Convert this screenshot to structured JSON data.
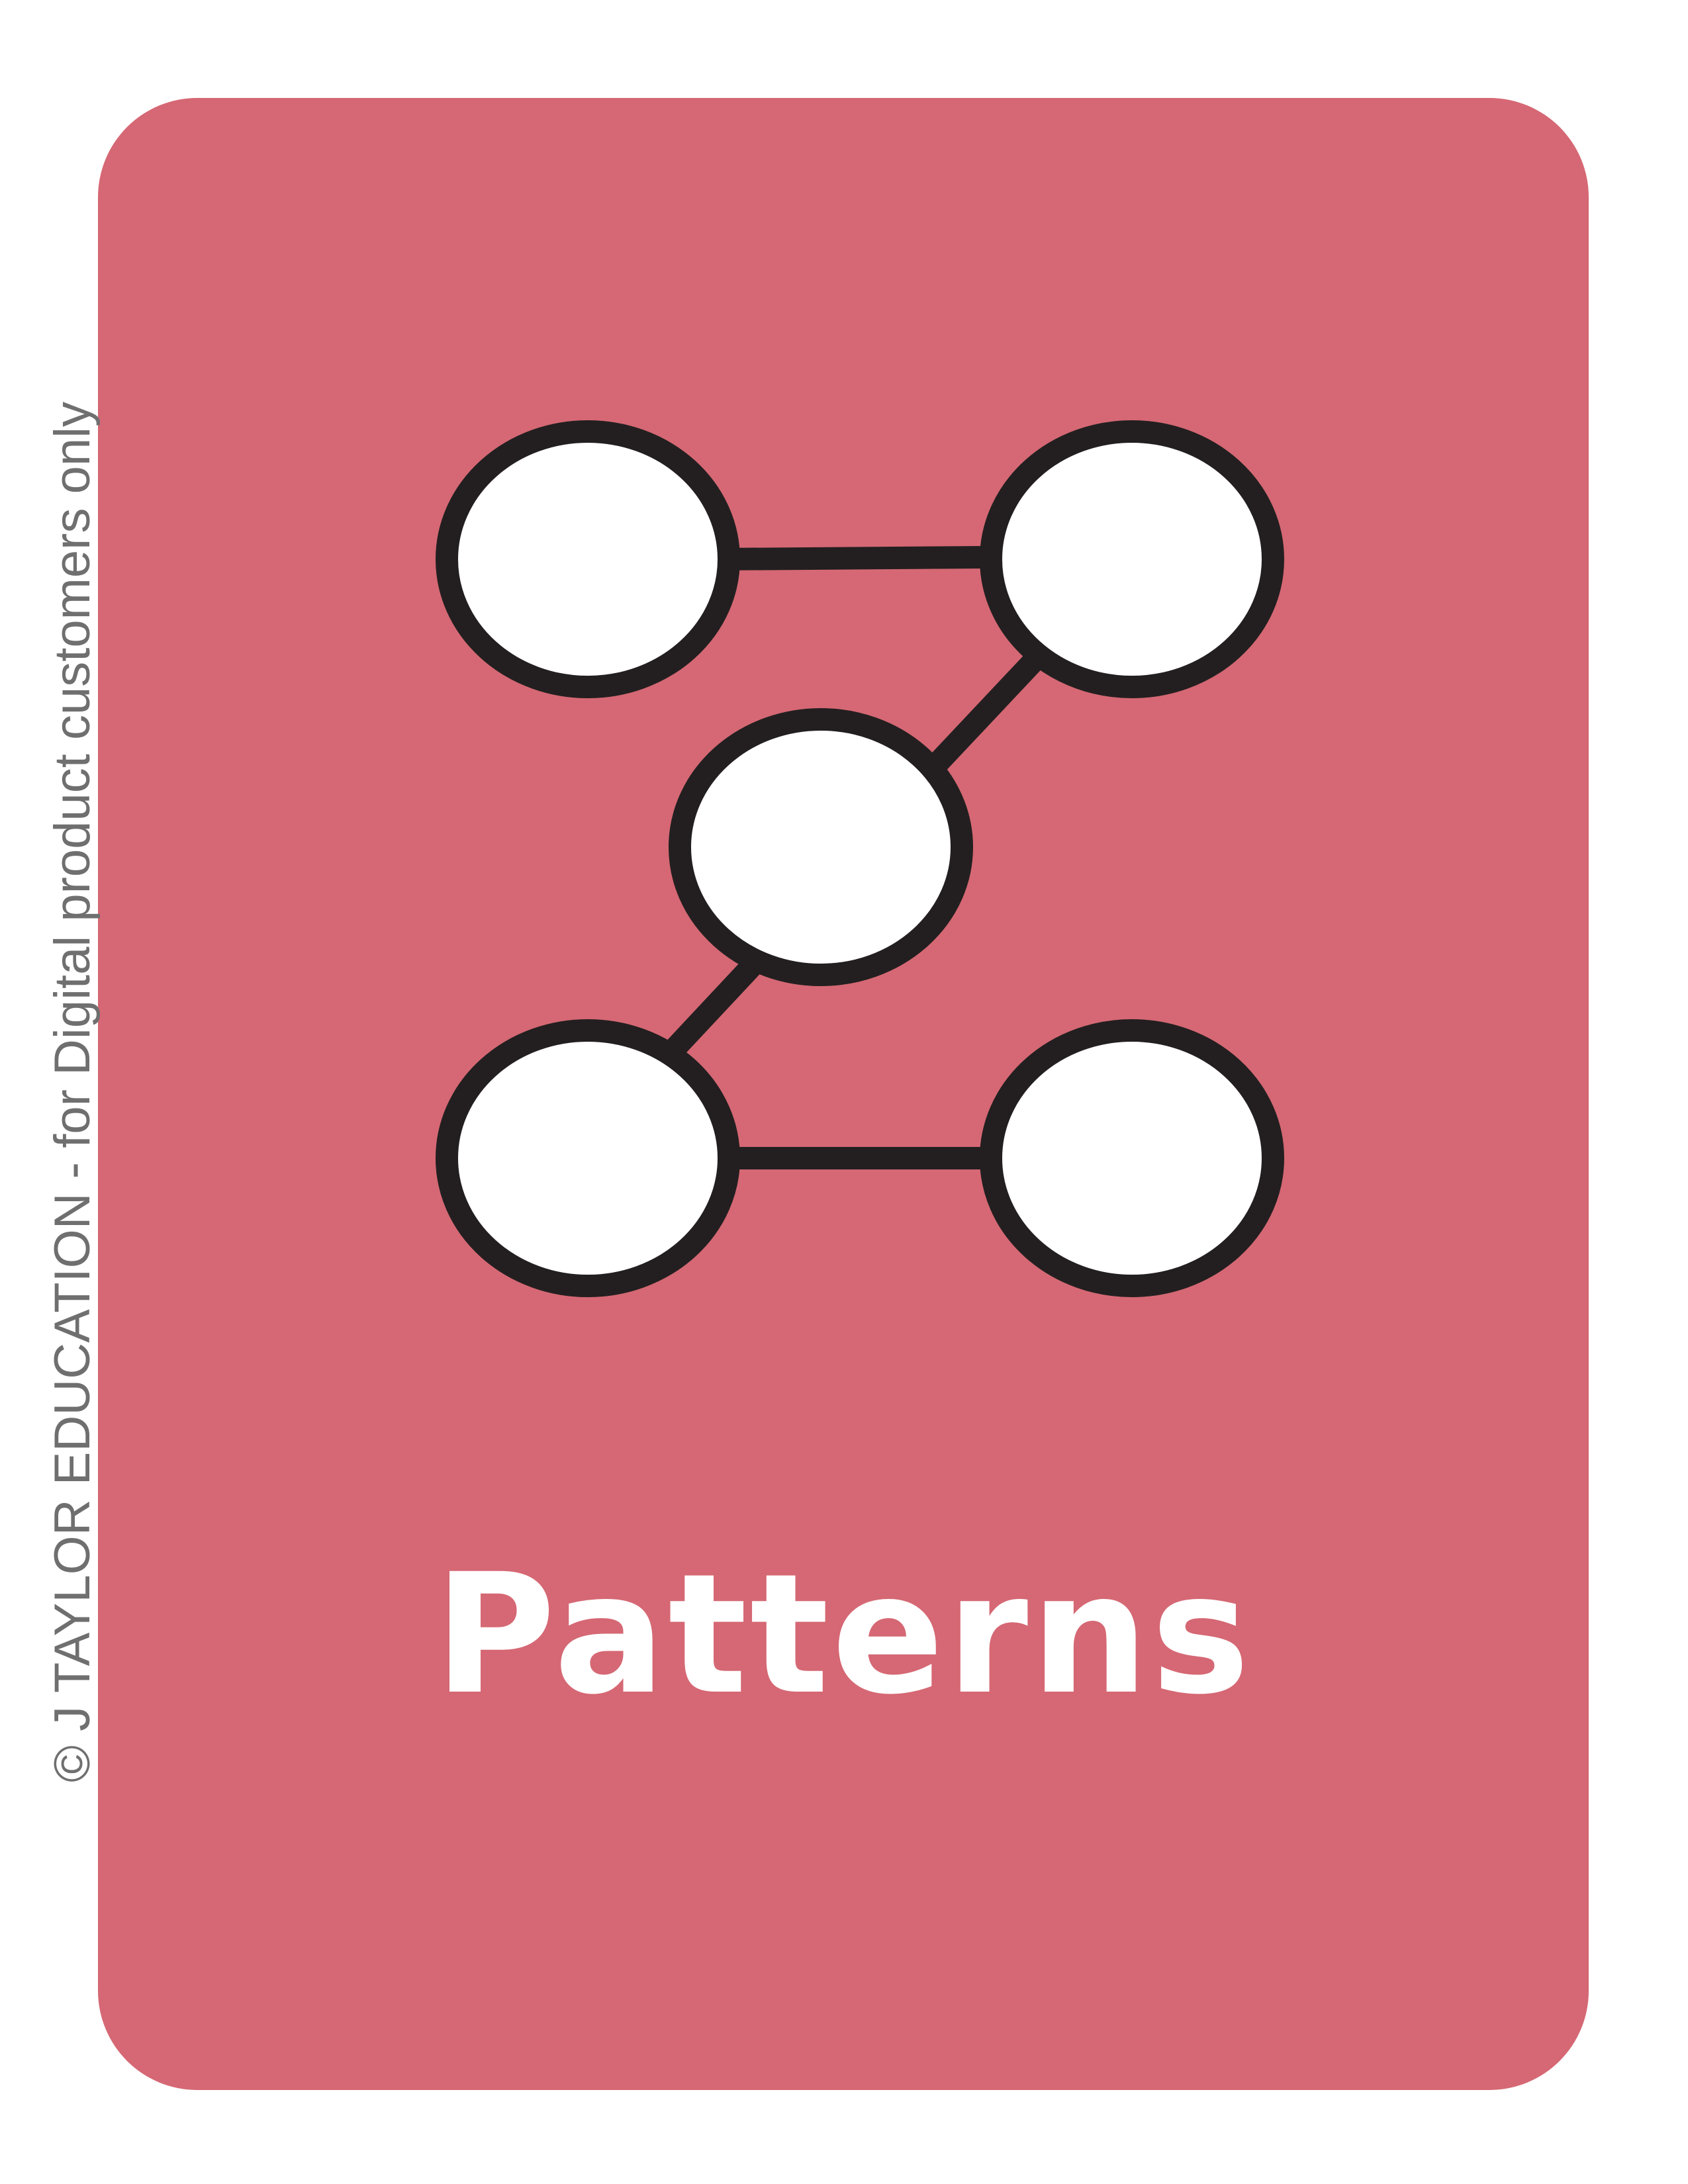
{
  "card": {
    "title": "Patterns",
    "background_color": "#d56874",
    "icon": "patterns-icon"
  },
  "copyright": {
    "text": "© J TAYLOR EDUCATION - for Digital product customers only",
    "color": "#6f6f6f"
  },
  "colors": {
    "node_fill": "#ffffff",
    "node_stroke": "#231f20",
    "title_text": "#ffffff"
  }
}
